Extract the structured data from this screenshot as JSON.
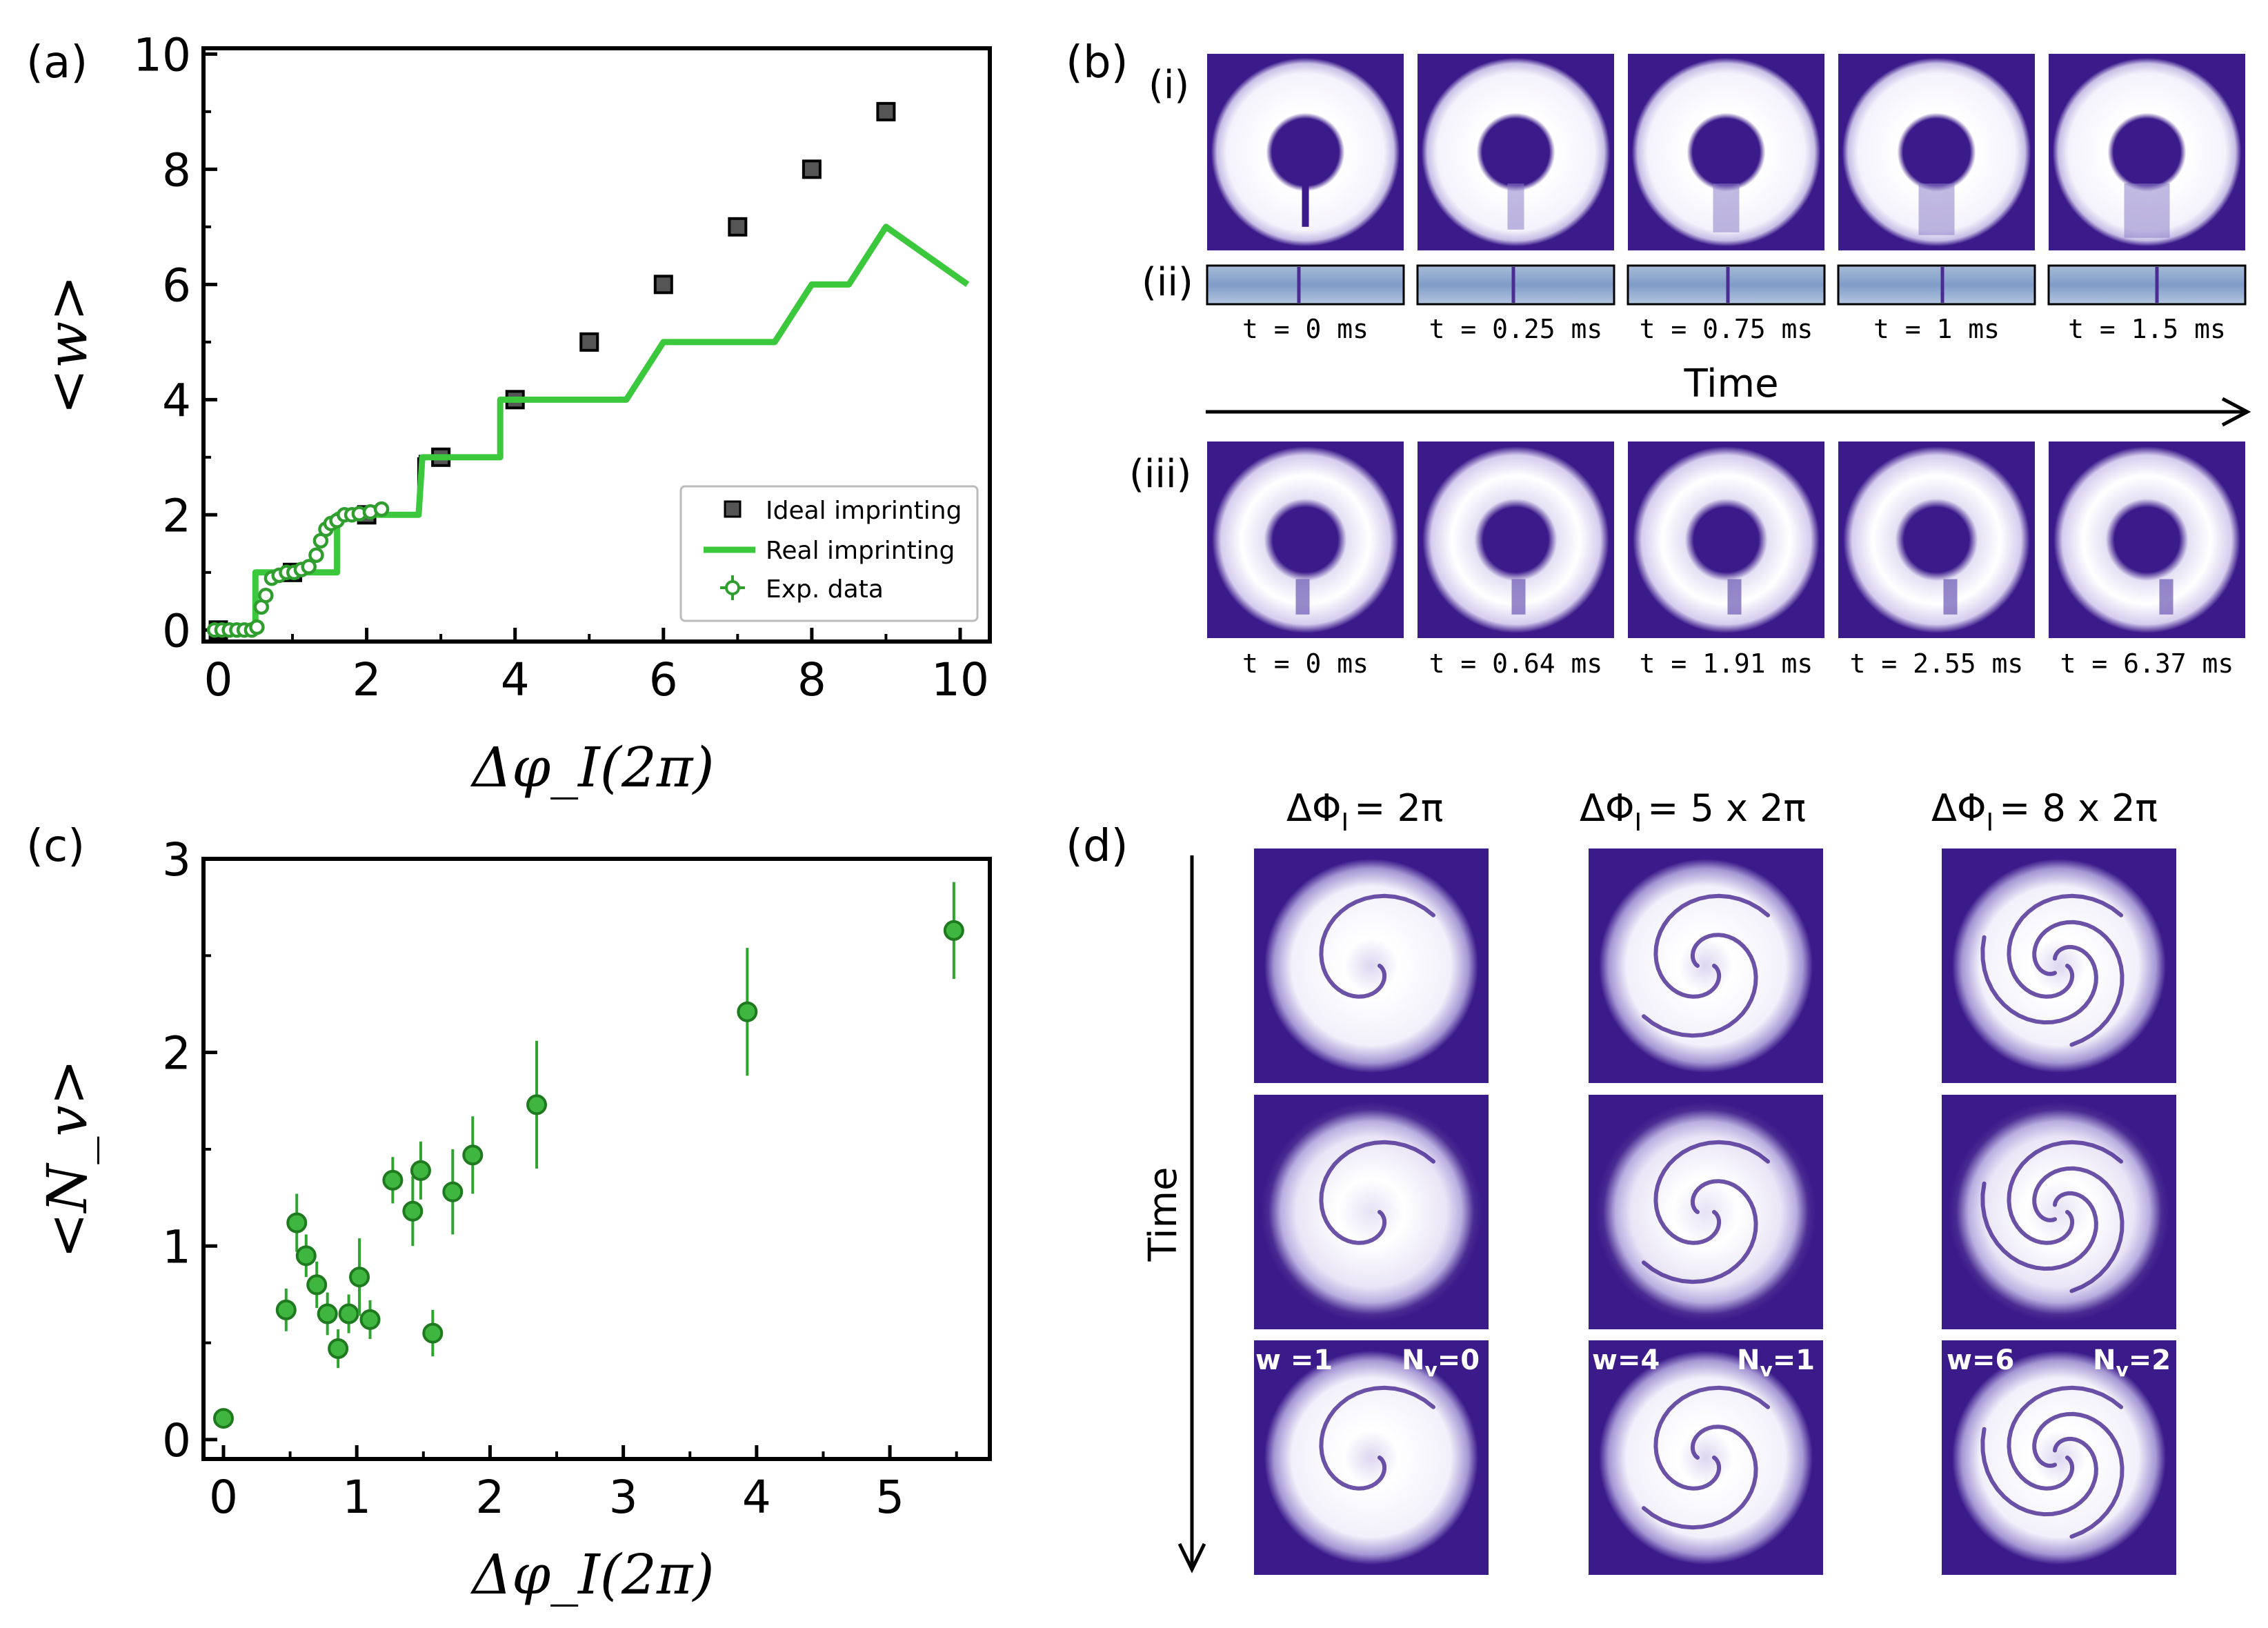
{
  "panel_labels": {
    "a": "(a)",
    "b": "(b)",
    "c": "(c)",
    "d": "(d)"
  },
  "chart_data": [
    {
      "id": "a",
      "type": "scatter",
      "xlabel": "Δφ_I(2π)",
      "ylabel": "<w>",
      "xlim": [
        -0.2,
        10.4
      ],
      "ylim": [
        -0.2,
        10.1
      ],
      "xticks": [
        0,
        2,
        4,
        6,
        8,
        10
      ],
      "yticks": [
        0,
        2,
        4,
        6,
        8,
        10
      ],
      "legend": {
        "position": "bottom-right",
        "entries": [
          "Ideal imprinting",
          "Real imprinting",
          "Exp. data"
        ]
      },
      "series": [
        {
          "name": "Ideal imprinting",
          "kind": "markers-with-steps",
          "x": [
            0,
            1,
            2,
            3,
            4,
            5,
            6,
            7,
            8,
            9
          ],
          "y": [
            0,
            1,
            2,
            3,
            4,
            5,
            6,
            7,
            8,
            9
          ],
          "step_ranges": [
            [
              0,
              0.5
            ],
            [
              0.5,
              1.6
            ],
            [
              1.6,
              2.7
            ],
            [
              2.7,
              3.8
            ],
            [
              3.8,
              4.8
            ]
          ],
          "color": "#555555"
        },
        {
          "name": "Real imprinting",
          "kind": "line",
          "x": [
            -0.1,
            0.5,
            0.5,
            1.6,
            1.6,
            2.7,
            2.75,
            3.8,
            3.8,
            5.5,
            6.0,
            7.5,
            8.0,
            8.5,
            9.0,
            10.1
          ],
          "y": [
            0,
            0,
            1,
            1,
            2,
            2,
            3,
            3,
            4,
            4,
            5,
            5,
            6,
            6,
            7,
            6
          ],
          "color": "#3cc83c"
        },
        {
          "name": "Exp. data",
          "kind": "open-circles",
          "x": [
            -0.05,
            0.05,
            0.15,
            0.25,
            0.35,
            0.45,
            0.52,
            0.58,
            0.64,
            0.72,
            0.82,
            0.92,
            1.02,
            1.12,
            1.22,
            1.32,
            1.38,
            1.45,
            1.52,
            1.6,
            1.7,
            1.8,
            1.9,
            2.05,
            2.2
          ],
          "y": [
            0,
            0,
            0,
            0,
            0,
            0,
            0.05,
            0.4,
            0.6,
            0.9,
            0.95,
            1.0,
            1.0,
            1.05,
            1.1,
            1.3,
            1.55,
            1.75,
            1.85,
            1.9,
            2.0,
            2.0,
            2.02,
            2.05,
            2.1
          ],
          "color": "#2f9e2f"
        }
      ]
    },
    {
      "id": "c",
      "type": "scatter",
      "xlabel": "Δφ_I(2π)",
      "ylabel": "<N_v>",
      "xlim": [
        -0.15,
        5.75
      ],
      "ylim": [
        -0.1,
        3.0
      ],
      "xticks": [
        0,
        1,
        2,
        3,
        4,
        5
      ],
      "yticks": [
        0,
        1,
        2,
        3
      ],
      "series": [
        {
          "name": "Exp. data",
          "kind": "errorbar",
          "color": "#2fa32f",
          "x": [
            0.0,
            0.47,
            0.55,
            0.62,
            0.7,
            0.78,
            0.86,
            0.94,
            1.02,
            1.1,
            1.27,
            1.42,
            1.48,
            1.57,
            1.72,
            1.87,
            2.35,
            3.93,
            5.48
          ],
          "y": [
            0.11,
            0.67,
            1.12,
            0.95,
            0.8,
            0.65,
            0.47,
            0.65,
            0.84,
            0.62,
            1.34,
            1.18,
            1.39,
            0.55,
            1.28,
            1.47,
            1.73,
            2.21,
            2.63
          ],
          "err": [
            0.05,
            0.11,
            0.15,
            0.11,
            0.12,
            0.11,
            0.1,
            0.1,
            0.2,
            0.1,
            0.12,
            0.18,
            0.15,
            0.12,
            0.22,
            0.2,
            0.33,
            0.33,
            0.25
          ]
        }
      ]
    }
  ],
  "panel_b": {
    "row_labels": [
      "(i)",
      "(ii)",
      "(iii)"
    ],
    "times_row1": [
      "t = 0 ms",
      "t = 0.25 ms",
      "t = 0.75 ms",
      "t = 1 ms",
      "t = 1.5 ms"
    ],
    "times_row2": [
      "t = 0 ms",
      "t = 0.64 ms",
      "t = 1.91 ms",
      "t = 2.55 ms",
      "t = 6.37 ms"
    ],
    "time_axis_label": "Time"
  },
  "panel_d": {
    "column_headers": [
      "ΔΦ",
      "= 2π",
      "ΔΦ",
      "= 5 x 2π",
      "ΔΦ",
      "= 8 x 2π"
    ],
    "header_subscript": "I",
    "time_label": "Time",
    "overlay_w": [
      "w =1",
      "w=4",
      "w=6"
    ],
    "overlay_nv": [
      "N",
      "=0",
      "N",
      "=1",
      "N",
      "=2"
    ],
    "nv_subscript": "v"
  },
  "colors": {
    "purple": "#3b1a8a",
    "green_line": "#3cc83c",
    "green_point": "#2fa32f"
  }
}
